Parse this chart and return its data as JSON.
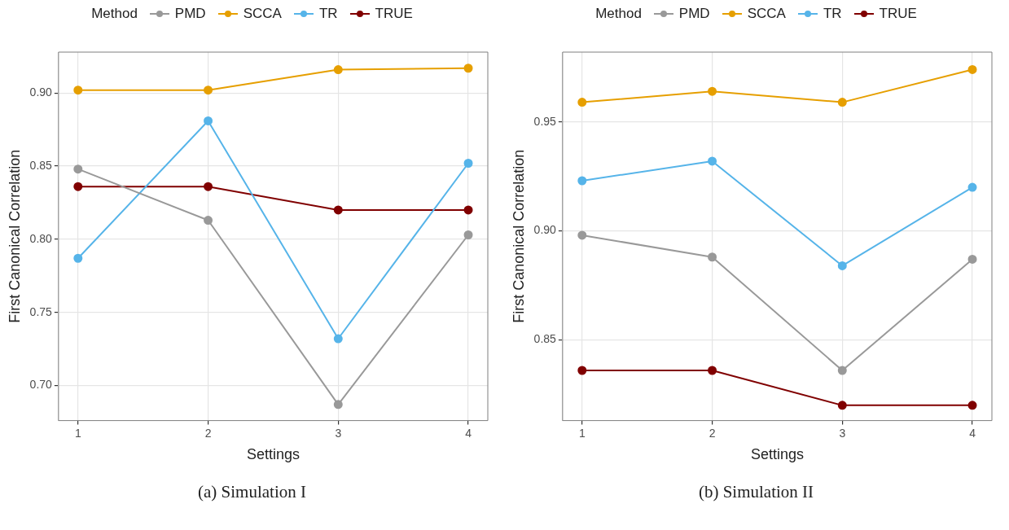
{
  "chart_data": [
    {
      "type": "line",
      "legend_title": "Method",
      "legend": "top",
      "xlabel": "Settings",
      "ylabel": "First Canonical Correlation",
      "annotations": [
        "(a) Simulation I"
      ],
      "marker": "circle",
      "grid": true,
      "x": [
        1,
        2,
        3,
        4
      ],
      "xlim": [
        0.85,
        4.15
      ],
      "xticks": [
        1,
        2,
        3,
        4
      ],
      "ylim": [
        0.676,
        0.928
      ],
      "yticks": [
        {
          "value": 0.7,
          "label": "0.70"
        },
        0.75,
        {
          "value": 0.8,
          "label": "0.80"
        },
        0.85,
        {
          "value": 0.9,
          "label": "0.90"
        }
      ],
      "series": [
        {
          "name": "PMD",
          "color": "#999999",
          "values": [
            0.848,
            0.813,
            0.687,
            0.803
          ]
        },
        {
          "name": "SCCA",
          "color": "#e69f00",
          "values": [
            0.902,
            0.902,
            0.916,
            0.917
          ]
        },
        {
          "name": "TR",
          "color": "#56b4e9",
          "values": [
            0.787,
            0.881,
            0.732,
            0.852
          ]
        },
        {
          "name": "TRUE",
          "color": "#800000",
          "values": [
            0.836,
            0.836,
            0.82,
            0.82
          ]
        }
      ]
    },
    {
      "type": "line",
      "legend_title": "Method",
      "legend": "top",
      "xlabel": "Settings",
      "ylabel": "First Canonical Correlation",
      "annotations": [
        "(b) Simulation II"
      ],
      "marker": "circle",
      "grid": true,
      "x": [
        1,
        2,
        3,
        4
      ],
      "xlim": [
        0.85,
        4.15
      ],
      "xticks": [
        1,
        2,
        3,
        4
      ],
      "ylim": [
        0.813,
        0.982
      ],
      "yticks": [
        0.85,
        {
          "value": 0.9,
          "label": "0.90"
        },
        0.95
      ],
      "series": [
        {
          "name": "PMD",
          "color": "#999999",
          "values": [
            0.898,
            0.888,
            0.836,
            0.887
          ]
        },
        {
          "name": "SCCA",
          "color": "#e69f00",
          "values": [
            0.959,
            0.964,
            0.959,
            0.974
          ]
        },
        {
          "name": "TR",
          "color": "#56b4e9",
          "values": [
            0.923,
            0.932,
            0.884,
            0.92
          ]
        },
        {
          "name": "TRUE",
          "color": "#800000",
          "values": [
            0.836,
            0.836,
            0.82,
            0.82
          ]
        }
      ]
    }
  ]
}
